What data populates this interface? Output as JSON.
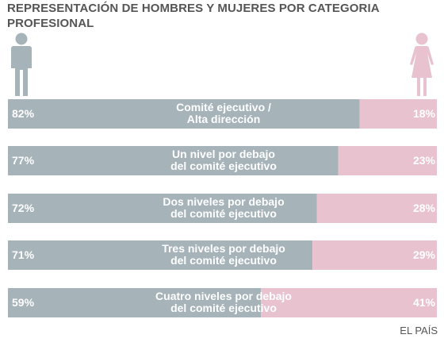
{
  "title": "REPRESENTACIÓN DE HOMBRES Y MUJERES POR CATEGORIA PROFESIONAL",
  "source": "EL PAÍS",
  "colors": {
    "men": "#a6b3b9",
    "women": "#e8c3cf",
    "text": "#555555",
    "label": "#ffffff"
  },
  "icons": {
    "left": "man-icon",
    "right": "woman-icon"
  },
  "chart_data": {
    "type": "bar",
    "stacked": true,
    "orientation": "horizontal",
    "title": "REPRESENTACIÓN DE HOMBRES Y MUJERES POR CATEGORIA PROFESIONAL",
    "categories": [
      [
        "Comité ejecutivo /",
        "Alta dirección"
      ],
      [
        "Un nivel por debajo",
        "del comité ejecutivo"
      ],
      [
        "Dos niveles por debajo",
        "del comité ejecutivo"
      ],
      [
        "Tres niveles por debajo",
        "del comité ejecutivo"
      ],
      [
        "Cuatro niveles por debajo",
        "del comité ejecutivo"
      ]
    ],
    "series": [
      {
        "values": [
          82,
          77,
          72,
          71,
          59
        ],
        "labels": [
          "82%",
          "77%",
          "72%",
          "71%",
          "59%"
        ]
      },
      {
        "values": [
          18,
          23,
          28,
          29,
          41
        ],
        "labels": [
          "18%",
          "23%",
          "28%",
          "29%",
          "41%"
        ]
      }
    ],
    "xlim": [
      0,
      100
    ],
    "legend": "icons"
  }
}
